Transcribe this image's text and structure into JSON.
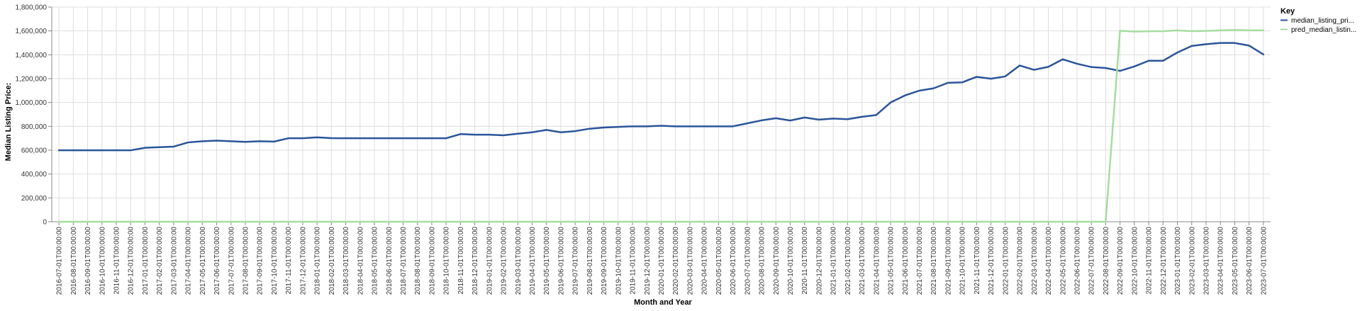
{
  "chart_data": {
    "type": "line",
    "xlabel": "Month and Year",
    "ylabel": "Median Listing Price:",
    "ylim": [
      0,
      1800000
    ],
    "y_ticks": [
      0,
      200000,
      400000,
      600000,
      800000,
      1000000,
      1200000,
      1400000,
      1600000,
      1800000
    ],
    "y_tick_labels": [
      "0",
      "200,000",
      "400,000",
      "600,000",
      "800,000",
      "1,000,000",
      "1,200,000",
      "1,400,000",
      "1,600,000",
      "1,800,000"
    ],
    "grid": true,
    "legend": {
      "title": "Key",
      "placement": "right"
    },
    "x": [
      "2016-07-01T00:00:00",
      "2016-08-01T00:00:00",
      "2016-09-01T00:00:00",
      "2016-10-01T00:00:00",
      "2016-11-01T00:00:00",
      "2016-12-01T00:00:00",
      "2017-01-01T00:00:00",
      "2017-02-01T00:00:00",
      "2017-03-01T00:00:00",
      "2017-04-01T00:00:00",
      "2017-05-01T00:00:00",
      "2017-06-01T00:00:00",
      "2017-07-01T00:00:00",
      "2017-08-01T00:00:00",
      "2017-09-01T00:00:00",
      "2017-10-01T00:00:00",
      "2017-11-01T00:00:00",
      "2017-12-01T00:00:00",
      "2018-01-01T00:00:00",
      "2018-02-01T00:00:00",
      "2018-03-01T00:00:00",
      "2018-04-01T00:00:00",
      "2018-05-01T00:00:00",
      "2018-06-01T00:00:00",
      "2018-07-01T00:00:00",
      "2018-08-01T00:00:00",
      "2018-09-01T00:00:00",
      "2018-10-01T00:00:00",
      "2018-11-01T00:00:00",
      "2018-12-01T00:00:00",
      "2019-01-01T00:00:00",
      "2019-02-01T00:00:00",
      "2019-03-01T00:00:00",
      "2019-04-01T00:00:00",
      "2019-05-01T00:00:00",
      "2019-06-01T00:00:00",
      "2019-07-01T00:00:00",
      "2019-08-01T00:00:00",
      "2019-09-01T00:00:00",
      "2019-10-01T00:00:00",
      "2019-11-01T00:00:00",
      "2019-12-01T00:00:00",
      "2020-01-01T00:00:00",
      "2020-02-01T00:00:00",
      "2020-03-01T00:00:00",
      "2020-04-01T00:00:00",
      "2020-05-01T00:00:00",
      "2020-06-01T00:00:00",
      "2020-07-01T00:00:00",
      "2020-08-01T00:00:00",
      "2020-09-01T00:00:00",
      "2020-10-01T00:00:00",
      "2020-11-01T00:00:00",
      "2020-12-01T00:00:00",
      "2021-01-01T00:00:00",
      "2021-02-01T00:00:00",
      "2021-03-01T00:00:00",
      "2021-04-01T00:00:00",
      "2021-05-01T00:00:00",
      "2021-06-01T00:00:00",
      "2021-07-01T00:00:00",
      "2021-08-01T00:00:00",
      "2021-09-01T00:00:00",
      "2021-10-01T00:00:00",
      "2021-11-01T00:00:00",
      "2021-12-01T00:00:00",
      "2022-01-01T00:00:00",
      "2022-02-01T00:00:00",
      "2022-03-01T00:00:00",
      "2022-04-01T00:00:00",
      "2022-05-01T00:00:00",
      "2022-06-01T00:00:00",
      "2022-07-01T00:00:00",
      "2022-08-01T00:00:00",
      "2022-09-01T00:00:00",
      "2022-10-01T00:00:00",
      "2022-11-01T00:00:00",
      "2022-12-01T00:00:00",
      "2023-01-01T00:00:00",
      "2023-02-01T00:00:00",
      "2023-03-01T00:00:00",
      "2023-04-01T00:00:00",
      "2023-05-01T00:00:00",
      "2023-06-01T00:00:00",
      "2023-07-01T00:00:00"
    ],
    "series": [
      {
        "name": "median_listing_pri...",
        "color": "#2a5599",
        "values": [
          599000,
          599000,
          599000,
          599000,
          599000,
          599000,
          620000,
          625000,
          630000,
          665000,
          675000,
          680000,
          675000,
          670000,
          675000,
          672000,
          700000,
          700000,
          708000,
          701000,
          700000,
          700000,
          700000,
          700000,
          700000,
          700000,
          700000,
          700000,
          735000,
          730000,
          730000,
          725000,
          738000,
          750000,
          770000,
          750000,
          760000,
          780000,
          790000,
          795000,
          800000,
          800000,
          805000,
          800000,
          800000,
          800000,
          800000,
          800000,
          825000,
          850000,
          868000,
          849000,
          874000,
          856000,
          865000,
          860000,
          880000,
          895000,
          1000000,
          1059000,
          1099000,
          1119000,
          1165000,
          1169000,
          1215000,
          1199000,
          1219000,
          1310000,
          1274000,
          1299000,
          1362000,
          1325000,
          1297000,
          1289000,
          1265000,
          1302000,
          1350000,
          1350000,
          1419000,
          1474000,
          1489000,
          1499000,
          1499000,
          1477000,
          1403000
        ]
      },
      {
        "name": "pred_median_listin...",
        "color": "#a6dca0",
        "values": [
          0,
          0,
          0,
          0,
          0,
          0,
          0,
          0,
          0,
          0,
          0,
          0,
          0,
          0,
          0,
          0,
          0,
          0,
          0,
          0,
          0,
          0,
          0,
          0,
          0,
          0,
          0,
          0,
          0,
          0,
          0,
          0,
          0,
          0,
          0,
          0,
          0,
          0,
          0,
          0,
          0,
          0,
          0,
          0,
          0,
          0,
          0,
          0,
          0,
          0,
          0,
          0,
          0,
          0,
          0,
          0,
          0,
          0,
          0,
          0,
          0,
          0,
          0,
          0,
          0,
          0,
          0,
          0,
          0,
          0,
          0,
          0,
          0,
          0,
          1601000,
          1595000,
          1597000,
          1598000,
          1605000,
          1598000,
          1600000,
          1605000,
          1608000,
          1605000,
          1605000
        ]
      }
    ]
  }
}
